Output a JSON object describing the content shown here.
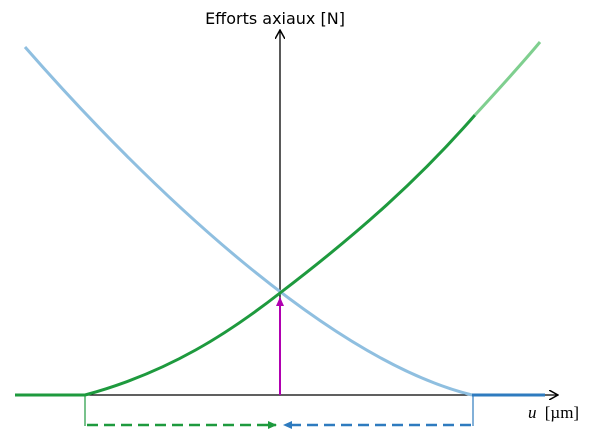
{
  "y_axis_label": "Efforts axiaux [N]",
  "x_axis_label_italic": "u",
  "x_axis_label_unit": "[µm]"
}
